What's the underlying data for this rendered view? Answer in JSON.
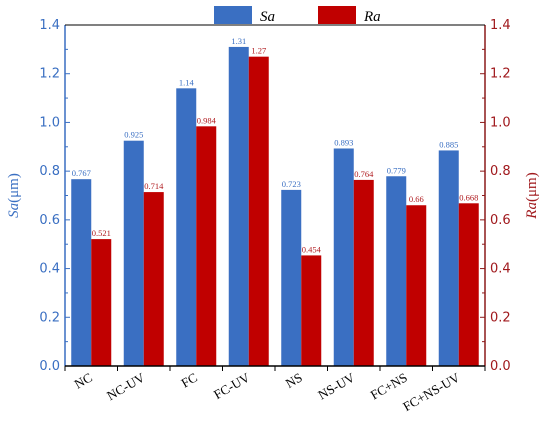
{
  "chart_data": {
    "type": "bar",
    "categories": [
      "NC",
      "NC-UV",
      "FC",
      "FC-UV",
      "NS",
      "NS-UV",
      "FC+NS",
      "FC+NS-UV"
    ],
    "series": [
      {
        "name": "Sa",
        "values": [
          0.767,
          0.925,
          1.14,
          1.31,
          0.723,
          0.893,
          0.779,
          0.885
        ],
        "labels": [
          "0.767",
          "0.925",
          "1.14",
          "1.31",
          "0.723",
          "0.893",
          "0.779",
          "0.885"
        ],
        "color": "#3a6fc2"
      },
      {
        "name": "Ra",
        "values": [
          0.521,
          0.714,
          0.984,
          1.27,
          0.454,
          0.764,
          0.66,
          0.668
        ],
        "labels": [
          "0.521",
          "0.714",
          "0.984",
          "1.27",
          "0.454",
          "0.764",
          "0.66",
          "0.668"
        ],
        "color": "#c00000"
      }
    ],
    "ylim": [
      0,
      1.4
    ],
    "yticks": [
      "0.0",
      "0.2",
      "0.4",
      "0.6",
      "0.8",
      "1.0",
      "1.2",
      "1.4"
    ],
    "ylabel_left": {
      "italic": "Sa",
      "rest": "(μm)"
    },
    "ylabel_right": {
      "italic": "Ra",
      "rest": "(μm)"
    },
    "left_axis_color": "#3a6fc2",
    "right_axis_color": "#8b1a1a",
    "legend_position": "top-center"
  }
}
